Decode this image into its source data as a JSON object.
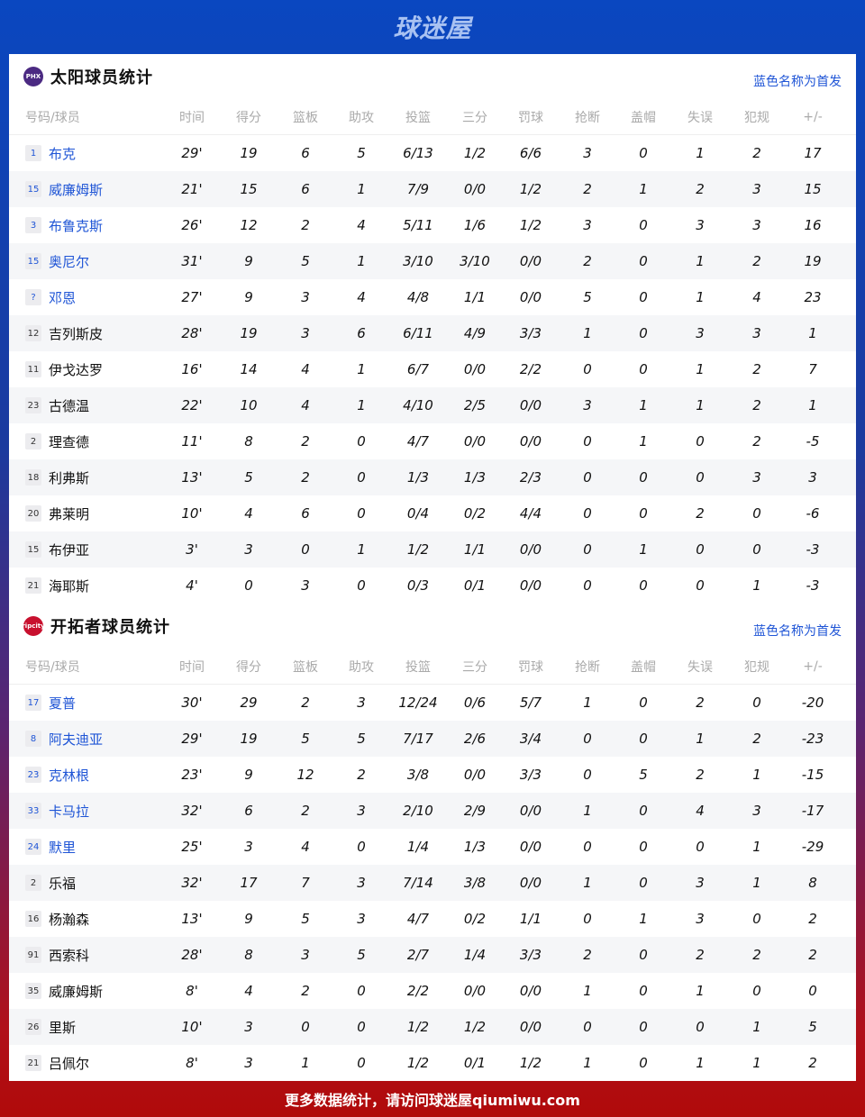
{
  "header": {
    "logo": "球迷屋"
  },
  "columns": [
    "号码/球员",
    "时间",
    "得分",
    "篮板",
    "助攻",
    "投篮",
    "三分",
    "罚球",
    "抢断",
    "盖帽",
    "失误",
    "犯规",
    "+/-"
  ],
  "colors": {
    "accent": "#1f55d6",
    "header_bg": "#0a47c0",
    "footer_bg": "#b00a0a"
  },
  "teams": [
    {
      "title": "太阳球员统计",
      "logo_text": "PHX",
      "logo_color": "#4b2a82",
      "starter_note": "蓝色名称为首发",
      "players": [
        {
          "no": "1",
          "name": "布克",
          "starter": true,
          "stats": [
            "29'",
            "19",
            "6",
            "5",
            "6/13",
            "1/2",
            "6/6",
            "3",
            "0",
            "1",
            "2",
            "17"
          ]
        },
        {
          "no": "15",
          "name": "威廉姆斯",
          "starter": true,
          "stats": [
            "21'",
            "15",
            "6",
            "1",
            "7/9",
            "0/0",
            "1/2",
            "2",
            "1",
            "2",
            "3",
            "15"
          ]
        },
        {
          "no": "3",
          "name": "布鲁克斯",
          "starter": true,
          "stats": [
            "26'",
            "12",
            "2",
            "4",
            "5/11",
            "1/6",
            "1/2",
            "3",
            "0",
            "3",
            "3",
            "16"
          ]
        },
        {
          "no": "15",
          "name": "奥尼尔",
          "starter": true,
          "stats": [
            "31'",
            "9",
            "5",
            "1",
            "3/10",
            "3/10",
            "0/0",
            "2",
            "0",
            "1",
            "2",
            "19"
          ]
        },
        {
          "no": "?",
          "name": "邓恩",
          "starter": true,
          "stats": [
            "27'",
            "9",
            "3",
            "4",
            "4/8",
            "1/1",
            "0/0",
            "5",
            "0",
            "1",
            "4",
            "23"
          ]
        },
        {
          "no": "12",
          "name": "吉列斯皮",
          "starter": false,
          "stats": [
            "28'",
            "19",
            "3",
            "6",
            "6/11",
            "4/9",
            "3/3",
            "1",
            "0",
            "3",
            "3",
            "1"
          ]
        },
        {
          "no": "11",
          "name": "伊戈达罗",
          "starter": false,
          "stats": [
            "16'",
            "14",
            "4",
            "1",
            "6/7",
            "0/0",
            "2/2",
            "0",
            "0",
            "1",
            "2",
            "7"
          ]
        },
        {
          "no": "23",
          "name": "古德温",
          "starter": false,
          "stats": [
            "22'",
            "10",
            "4",
            "1",
            "4/10",
            "2/5",
            "0/0",
            "3",
            "1",
            "1",
            "2",
            "1"
          ]
        },
        {
          "no": "2",
          "name": "理查德",
          "starter": false,
          "stats": [
            "11'",
            "8",
            "2",
            "0",
            "4/7",
            "0/0",
            "0/0",
            "0",
            "1",
            "0",
            "2",
            "-5"
          ]
        },
        {
          "no": "18",
          "name": "利弗斯",
          "starter": false,
          "stats": [
            "13'",
            "5",
            "2",
            "0",
            "1/3",
            "1/3",
            "2/3",
            "0",
            "0",
            "0",
            "3",
            "3"
          ]
        },
        {
          "no": "20",
          "name": "弗莱明",
          "starter": false,
          "stats": [
            "10'",
            "4",
            "6",
            "0",
            "0/4",
            "0/2",
            "4/4",
            "0",
            "0",
            "2",
            "0",
            "-6"
          ]
        },
        {
          "no": "15",
          "name": "布伊亚",
          "starter": false,
          "stats": [
            "3'",
            "3",
            "0",
            "1",
            "1/2",
            "1/1",
            "0/0",
            "0",
            "1",
            "0",
            "0",
            "-3"
          ]
        },
        {
          "no": "21",
          "name": "海耶斯",
          "starter": false,
          "stats": [
            "4'",
            "0",
            "3",
            "0",
            "0/3",
            "0/1",
            "0/0",
            "0",
            "0",
            "0",
            "1",
            "-3"
          ]
        }
      ]
    },
    {
      "title": "开拓者球员统计",
      "logo_text": "ripcity",
      "logo_color": "#c8102e",
      "starter_note": "蓝色名称为首发",
      "players": [
        {
          "no": "17",
          "name": "夏普",
          "starter": true,
          "stats": [
            "30'",
            "29",
            "2",
            "3",
            "12/24",
            "0/6",
            "5/7",
            "1",
            "0",
            "2",
            "0",
            "-20"
          ]
        },
        {
          "no": "8",
          "name": "阿夫迪亚",
          "starter": true,
          "stats": [
            "29'",
            "19",
            "5",
            "5",
            "7/17",
            "2/6",
            "3/4",
            "0",
            "0",
            "1",
            "2",
            "-23"
          ]
        },
        {
          "no": "23",
          "name": "克林根",
          "starter": true,
          "stats": [
            "23'",
            "9",
            "12",
            "2",
            "3/8",
            "0/0",
            "3/3",
            "0",
            "5",
            "2",
            "1",
            "-15"
          ]
        },
        {
          "no": "33",
          "name": "卡马拉",
          "starter": true,
          "stats": [
            "32'",
            "6",
            "2",
            "3",
            "2/10",
            "2/9",
            "0/0",
            "1",
            "0",
            "4",
            "3",
            "-17"
          ]
        },
        {
          "no": "24",
          "name": "默里",
          "starter": true,
          "stats": [
            "25'",
            "3",
            "4",
            "0",
            "1/4",
            "1/3",
            "0/0",
            "0",
            "0",
            "0",
            "1",
            "-29"
          ]
        },
        {
          "no": "2",
          "name": "乐福",
          "starter": false,
          "stats": [
            "32'",
            "17",
            "7",
            "3",
            "7/14",
            "3/8",
            "0/0",
            "1",
            "0",
            "3",
            "1",
            "8"
          ]
        },
        {
          "no": "16",
          "name": "杨瀚森",
          "starter": false,
          "stats": [
            "13'",
            "9",
            "5",
            "3",
            "4/7",
            "0/2",
            "1/1",
            "0",
            "1",
            "3",
            "0",
            "2"
          ]
        },
        {
          "no": "91",
          "name": "西索科",
          "starter": false,
          "stats": [
            "28'",
            "8",
            "3",
            "5",
            "2/7",
            "1/4",
            "3/3",
            "2",
            "0",
            "2",
            "2",
            "2"
          ]
        },
        {
          "no": "35",
          "name": "威廉姆斯",
          "starter": false,
          "stats": [
            "8'",
            "4",
            "2",
            "0",
            "2/2",
            "0/0",
            "0/0",
            "1",
            "0",
            "1",
            "0",
            "0"
          ]
        },
        {
          "no": "26",
          "name": "里斯",
          "starter": false,
          "stats": [
            "10'",
            "3",
            "0",
            "0",
            "1/2",
            "1/2",
            "0/0",
            "0",
            "0",
            "0",
            "1",
            "5"
          ]
        },
        {
          "no": "21",
          "name": "吕佩尔",
          "starter": false,
          "stats": [
            "8'",
            "3",
            "1",
            "0",
            "1/2",
            "0/1",
            "1/2",
            "1",
            "0",
            "1",
            "1",
            "2"
          ]
        }
      ]
    }
  ],
  "footer": {
    "text": "更多数据统计，请访问球迷屋qiumiwu.com"
  }
}
